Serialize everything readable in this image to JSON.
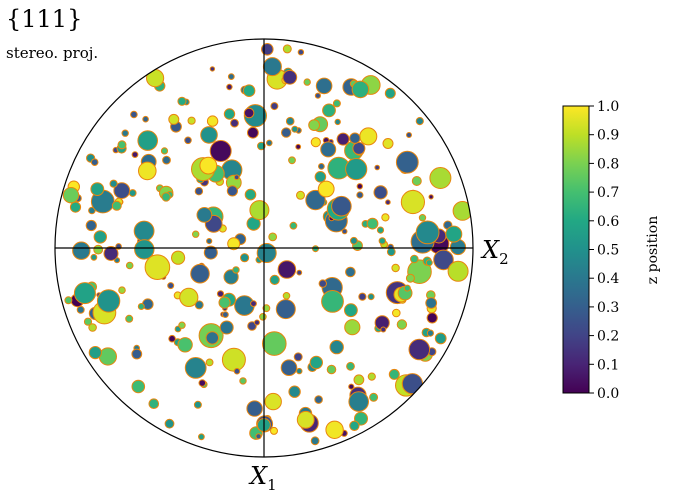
{
  "chart_data": {
    "type": "scatter",
    "title": "{111}",
    "subtitle": "stereo. proj.",
    "axis_x_label": {
      "main": "X",
      "sub": "2"
    },
    "axis_y_label": {
      "main": "X",
      "sub": "1"
    },
    "colorbar": {
      "label": "z position",
      "range": [
        0.0,
        1.0
      ],
      "ticks": [
        "0.0",
        "0.1",
        "0.2",
        "0.3",
        "0.4",
        "0.5",
        "0.6",
        "0.7",
        "0.8",
        "0.9",
        "1.0"
      ],
      "colormap": "viridis"
    },
    "marker_edge_color": "#e8860f",
    "seed": 20240611,
    "point_count": 330
  }
}
